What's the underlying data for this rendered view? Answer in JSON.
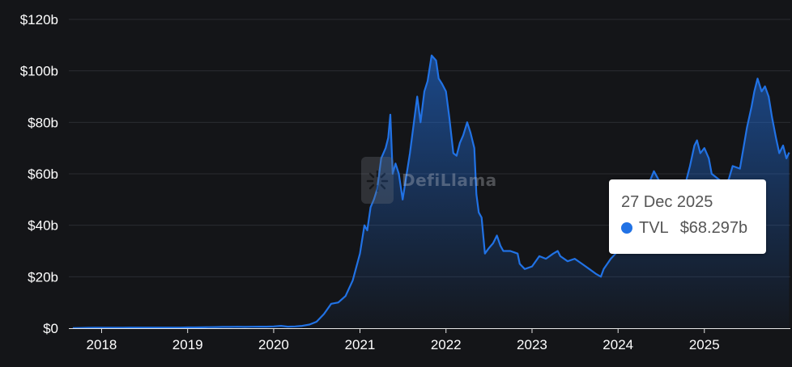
{
  "chart_data": {
    "type": "area",
    "series": [
      {
        "name": "TVL",
        "points": [
          [
            "2017-09-01",
            0.05
          ],
          [
            "2017-10-01",
            0.1
          ],
          [
            "2017-11-01",
            0.15
          ],
          [
            "2017-12-01",
            0.2
          ],
          [
            "2018-01-01",
            0.2
          ],
          [
            "2018-02-01",
            0.2
          ],
          [
            "2018-03-01",
            0.2
          ],
          [
            "2018-04-01",
            0.2
          ],
          [
            "2018-05-01",
            0.25
          ],
          [
            "2018-06-01",
            0.25
          ],
          [
            "2018-07-01",
            0.25
          ],
          [
            "2018-08-01",
            0.25
          ],
          [
            "2018-09-01",
            0.25
          ],
          [
            "2018-10-01",
            0.25
          ],
          [
            "2018-11-01",
            0.25
          ],
          [
            "2018-12-01",
            0.25
          ],
          [
            "2019-01-01",
            0.3
          ],
          [
            "2019-02-01",
            0.3
          ],
          [
            "2019-03-01",
            0.35
          ],
          [
            "2019-04-01",
            0.4
          ],
          [
            "2019-05-01",
            0.45
          ],
          [
            "2019-06-01",
            0.5
          ],
          [
            "2019-07-01",
            0.5
          ],
          [
            "2019-08-01",
            0.55
          ],
          [
            "2019-09-01",
            0.5
          ],
          [
            "2019-10-01",
            0.55
          ],
          [
            "2019-11-01",
            0.6
          ],
          [
            "2019-12-01",
            0.6
          ],
          [
            "2020-01-01",
            0.7
          ],
          [
            "2020-02-01",
            0.9
          ],
          [
            "2020-03-01",
            0.6
          ],
          [
            "2020-04-01",
            0.7
          ],
          [
            "2020-05-01",
            0.9
          ],
          [
            "2020-06-01",
            1.4
          ],
          [
            "2020-07-01",
            2.5
          ],
          [
            "2020-08-01",
            5.5
          ],
          [
            "2020-09-01",
            9.5
          ],
          [
            "2020-10-01",
            10.0
          ],
          [
            "2020-11-01",
            12.5
          ],
          [
            "2020-12-01",
            18.5
          ],
          [
            "2021-01-01",
            29.0
          ],
          [
            "2021-01-20",
            40.0
          ],
          [
            "2021-02-01",
            38.0
          ],
          [
            "2021-02-15",
            47.0
          ],
          [
            "2021-03-01",
            50.0
          ],
          [
            "2021-03-15",
            54.0
          ],
          [
            "2021-04-01",
            66.0
          ],
          [
            "2021-04-20",
            70.0
          ],
          [
            "2021-05-01",
            74.0
          ],
          [
            "2021-05-10",
            83.0
          ],
          [
            "2021-05-20",
            60.0
          ],
          [
            "2021-06-01",
            64.0
          ],
          [
            "2021-06-15",
            60.0
          ],
          [
            "2021-07-01",
            50.0
          ],
          [
            "2021-07-15",
            58.0
          ],
          [
            "2021-08-01",
            68.0
          ],
          [
            "2021-08-15",
            78.0
          ],
          [
            "2021-09-01",
            90.0
          ],
          [
            "2021-09-15",
            80.0
          ],
          [
            "2021-10-01",
            92.0
          ],
          [
            "2021-10-15",
            96.0
          ],
          [
            "2021-11-01",
            106.0
          ],
          [
            "2021-11-20",
            104.0
          ],
          [
            "2021-12-01",
            97.0
          ],
          [
            "2021-12-15",
            95.0
          ],
          [
            "2022-01-01",
            92.0
          ],
          [
            "2022-01-15",
            82.0
          ],
          [
            "2022-02-01",
            68.0
          ],
          [
            "2022-02-15",
            67.0
          ],
          [
            "2022-03-01",
            72.0
          ],
          [
            "2022-03-15",
            75.0
          ],
          [
            "2022-04-01",
            80.0
          ],
          [
            "2022-04-15",
            76.0
          ],
          [
            "2022-05-01",
            70.0
          ],
          [
            "2022-05-10",
            52.0
          ],
          [
            "2022-05-20",
            45.0
          ],
          [
            "2022-06-01",
            43.0
          ],
          [
            "2022-06-15",
            29.0
          ],
          [
            "2022-07-01",
            31.0
          ],
          [
            "2022-07-20",
            33.0
          ],
          [
            "2022-08-05",
            36.0
          ],
          [
            "2022-08-20",
            32.0
          ],
          [
            "2022-09-01",
            30.0
          ],
          [
            "2022-10-01",
            30.0
          ],
          [
            "2022-11-01",
            29.0
          ],
          [
            "2022-11-10",
            25.0
          ],
          [
            "2022-12-01",
            23.0
          ],
          [
            "2023-01-01",
            24.0
          ],
          [
            "2023-02-01",
            28.0
          ],
          [
            "2023-03-01",
            27.0
          ],
          [
            "2023-04-01",
            29.0
          ],
          [
            "2023-04-20",
            30.0
          ],
          [
            "2023-05-01",
            28.0
          ],
          [
            "2023-06-01",
            26.0
          ],
          [
            "2023-07-01",
            27.0
          ],
          [
            "2023-08-01",
            25.0
          ],
          [
            "2023-09-01",
            23.0
          ],
          [
            "2023-10-01",
            21.0
          ],
          [
            "2023-10-20",
            20.0
          ],
          [
            "2023-11-01",
            23.0
          ],
          [
            "2023-12-01",
            27.0
          ],
          [
            "2024-01-01",
            30.0
          ],
          [
            "2024-02-01",
            34.0
          ],
          [
            "2024-03-01",
            47.0
          ],
          [
            "2024-03-15",
            55.0
          ],
          [
            "2024-04-01",
            52.0
          ],
          [
            "2024-05-01",
            54.0
          ],
          [
            "2024-06-01",
            61.0
          ],
          [
            "2024-07-01",
            56.0
          ],
          [
            "2024-08-01",
            47.0
          ],
          [
            "2024-09-01",
            50.0
          ],
          [
            "2024-10-01",
            52.0
          ],
          [
            "2024-11-01",
            63.0
          ],
          [
            "2024-11-20",
            71.0
          ],
          [
            "2024-12-01",
            73.0
          ],
          [
            "2024-12-15",
            68.0
          ],
          [
            "2025-01-01",
            70.0
          ],
          [
            "2025-01-20",
            66.0
          ],
          [
            "2025-02-01",
            60.0
          ],
          [
            "2025-03-01",
            58.0
          ],
          [
            "2025-04-01",
            56.0
          ],
          [
            "2025-04-15",
            58.0
          ],
          [
            "2025-05-01",
            63.0
          ],
          [
            "2025-06-01",
            62.0
          ],
          [
            "2025-07-01",
            78.0
          ],
          [
            "2025-07-20",
            86.0
          ],
          [
            "2025-08-01",
            92.0
          ],
          [
            "2025-08-15",
            97.0
          ],
          [
            "2025-09-01",
            92.0
          ],
          [
            "2025-09-15",
            94.0
          ],
          [
            "2025-10-01",
            90.0
          ],
          [
            "2025-10-15",
            82.0
          ],
          [
            "2025-11-01",
            74.0
          ],
          [
            "2025-11-15",
            68.0
          ],
          [
            "2025-12-01",
            71.0
          ],
          [
            "2025-12-15",
            66.0
          ],
          [
            "2025-12-27",
            68.297
          ]
        ]
      }
    ],
    "xlim": [
      "2017-08-15",
      "2026-01-01"
    ],
    "ylim": [
      0,
      120
    ],
    "ytick_values": [
      0,
      20,
      40,
      60,
      80,
      100,
      120
    ],
    "ytick_labels": [
      "$0",
      "$20b",
      "$40b",
      "$60b",
      "$80b",
      "$100b",
      "$120b"
    ],
    "xtick_values": [
      "2018-01-01",
      "2019-01-01",
      "2020-01-01",
      "2021-01-01",
      "2022-01-01",
      "2023-01-01",
      "2024-01-01",
      "2025-01-01"
    ],
    "xtick_labels": [
      "2018",
      "2019",
      "2020",
      "2021",
      "2022",
      "2023",
      "2024",
      "2025"
    ],
    "grid": true,
    "line_color": "#2172e5"
  },
  "tooltip": {
    "date": "27 Dec 2025",
    "series_label": "TVL",
    "value": "$68.297b",
    "dot_color": "#2172e5"
  },
  "watermark": {
    "text": "DefiLlama"
  }
}
